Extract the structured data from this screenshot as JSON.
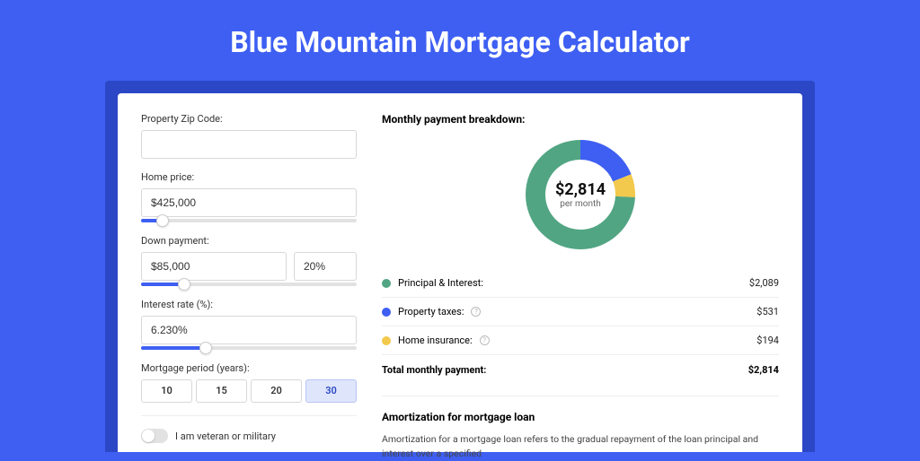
{
  "page": {
    "title": "Blue Mountain Mortgage Calculator",
    "background_color": "#3e5ff2",
    "shell_color": "#2b47c5",
    "card_color": "#ffffff"
  },
  "form": {
    "zip": {
      "label": "Property Zip Code:",
      "value": ""
    },
    "home_price": {
      "label": "Home price:",
      "value": "$425,000",
      "slider_pct": 10
    },
    "down_payment": {
      "label": "Down payment:",
      "amount": "$85,000",
      "pct": "20%",
      "slider_pct": 20
    },
    "interest_rate": {
      "label": "Interest rate (%):",
      "value": "6.230%",
      "slider_pct": 30
    },
    "period": {
      "label": "Mortgage period (years):",
      "options": [
        "10",
        "15",
        "20",
        "30"
      ],
      "selected_index": 3
    },
    "veteran": {
      "label": "I am veteran or military",
      "on": false
    }
  },
  "breakdown": {
    "title": "Monthly payment breakdown:",
    "center_amount": "$2,814",
    "center_sub": "per month",
    "items": [
      {
        "label": "Principal & Interest:",
        "amount": "$2,089",
        "value": 2089,
        "color": "#52a583",
        "has_info": false
      },
      {
        "label": "Property taxes:",
        "amount": "$531",
        "value": 531,
        "color": "#3e5ff2",
        "has_info": true
      },
      {
        "label": "Home insurance:",
        "amount": "$194",
        "value": 194,
        "color": "#f2c94c",
        "has_info": true
      }
    ],
    "total_label": "Total monthly payment:",
    "total_amount": "$2,814",
    "donut": {
      "radius": 50,
      "stroke_width": 22,
      "background_color": "#ffffff"
    }
  },
  "amortization": {
    "title": "Amortization for mortgage loan",
    "text": "Amortization for a mortgage loan refers to the gradual repayment of the loan principal and interest over a specified"
  }
}
